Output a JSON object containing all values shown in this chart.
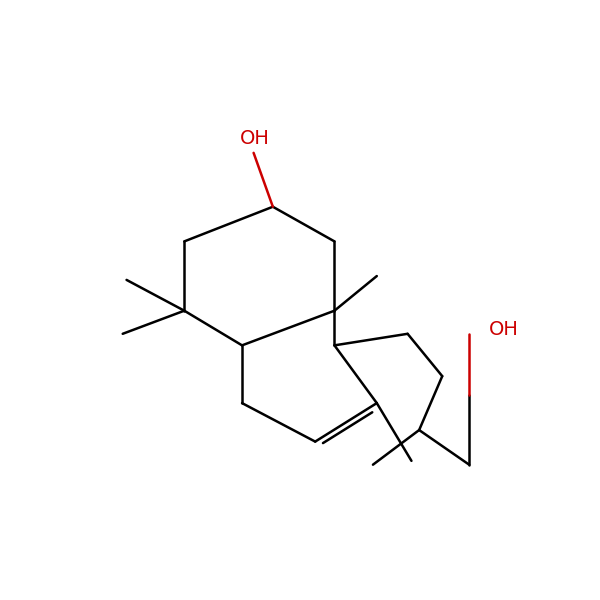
{
  "background_color": "#ffffff",
  "bond_color": "#000000",
  "oh_color": "#cc0000",
  "line_width": 1.8,
  "font_size": 14,
  "figsize": [
    6.0,
    6.0
  ],
  "dpi": 100
}
